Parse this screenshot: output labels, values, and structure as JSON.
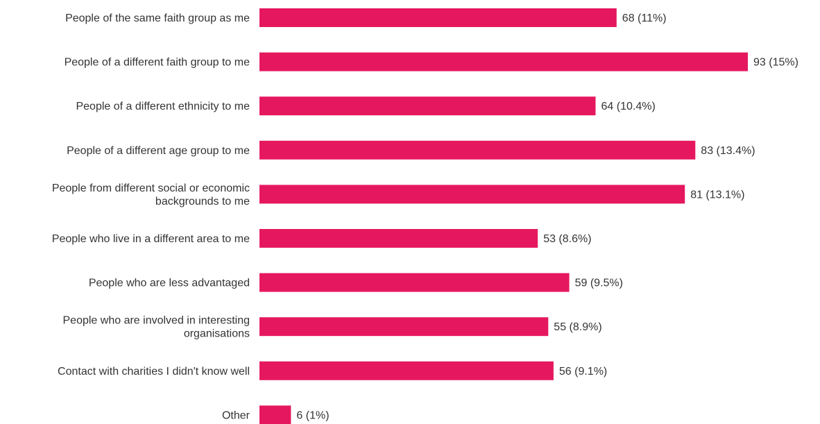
{
  "chart_data": {
    "type": "bar",
    "orientation": "horizontal",
    "categories": [
      [
        "People of the same faith group as me"
      ],
      [
        "People of a different faith group to me"
      ],
      [
        "People of a different ethnicity to me"
      ],
      [
        "People of a different age group to me"
      ],
      [
        "People from different social or economic",
        "backgrounds to me"
      ],
      [
        "People who live in a different area to me"
      ],
      [
        "People who are less advantaged"
      ],
      [
        "People who are involved in interesting",
        "organisations"
      ],
      [
        "Contact with charities I didn't know well"
      ],
      [
        "Other"
      ]
    ],
    "values": [
      68,
      93,
      64,
      83,
      81,
      53,
      59,
      55,
      56,
      6
    ],
    "percentages": [
      "11%",
      "15%",
      "10.4%",
      "13.4%",
      "13.1%",
      "8.6%",
      "9.5%",
      "8.9%",
      "9.1%",
      "1%"
    ],
    "value_labels": [
      "68  (11%)",
      "93  (15%)",
      "64  (10.4%)",
      "83  (13.4%)",
      "81  (13.1%)",
      "53  (8.6%)",
      "59  (9.5%)",
      "55  (8.9%)",
      "56  (9.1%)",
      "6  (1%)"
    ],
    "bar_color": "#e5185f",
    "title": "",
    "xlabel": "",
    "ylabel": "",
    "grid": false,
    "axes_visible": false
  }
}
